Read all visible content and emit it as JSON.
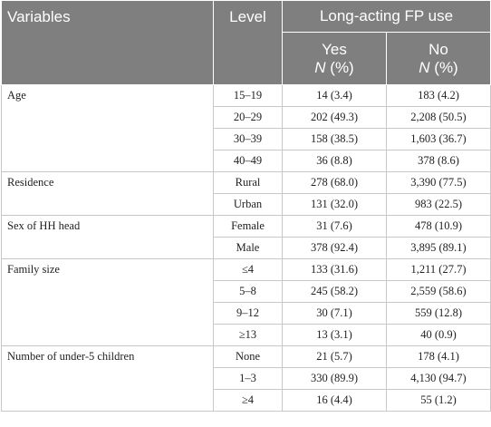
{
  "header": {
    "variables": "Variables",
    "level": "Level",
    "group": "Long-acting FP use",
    "yes": "Yes",
    "no": "No",
    "n_pct": "(%)",
    "n_letter": "N"
  },
  "rows": [
    {
      "variable": "Age",
      "level": "15–19",
      "yes": "14 (3.4)",
      "no": "183 (4.2)"
    },
    {
      "variable": "",
      "level": "20–29",
      "yes": "202 (49.3)",
      "no": "2,208 (50.5)"
    },
    {
      "variable": "",
      "level": "30–39",
      "yes": "158 (38.5)",
      "no": "1,603 (36.7)"
    },
    {
      "variable": "",
      "level": "40–49",
      "yes": "36 (8.8)",
      "no": "378 (8.6)"
    },
    {
      "variable": "Residence",
      "level": "Rural",
      "yes": "278 (68.0)",
      "no": "3,390 (77.5)"
    },
    {
      "variable": "",
      "level": "Urban",
      "yes": "131 (32.0)",
      "no": "983 (22.5)"
    },
    {
      "variable": "Sex of HH head",
      "level": "Female",
      "yes": "31 (7.6)",
      "no": "478 (10.9)"
    },
    {
      "variable": "",
      "level": "Male",
      "yes": "378 (92.4)",
      "no": "3,895 (89.1)"
    },
    {
      "variable": "Family size",
      "level": "≤4",
      "yes": "133 (31.6)",
      "no": "1,211 (27.7)"
    },
    {
      "variable": "",
      "level": "5–8",
      "yes": "245 (58.2)",
      "no": "2,559 (58.6)"
    },
    {
      "variable": "",
      "level": "9–12",
      "yes": "30 (7.1)",
      "no": "559 (12.8)"
    },
    {
      "variable": "",
      "level": "≥13",
      "yes": "13 (3.1)",
      "no": "40 (0.9)"
    },
    {
      "variable": "Number of under-5 children",
      "level": "None",
      "yes": "21 (5.7)",
      "no": "178 (4.1)"
    },
    {
      "variable": "",
      "level": "1–3",
      "yes": "330 (89.9)",
      "no": "4,130 (94.7)"
    },
    {
      "variable": "",
      "level": "≥4",
      "yes": "16 (4.4)",
      "no": "55 (1.2)"
    }
  ]
}
